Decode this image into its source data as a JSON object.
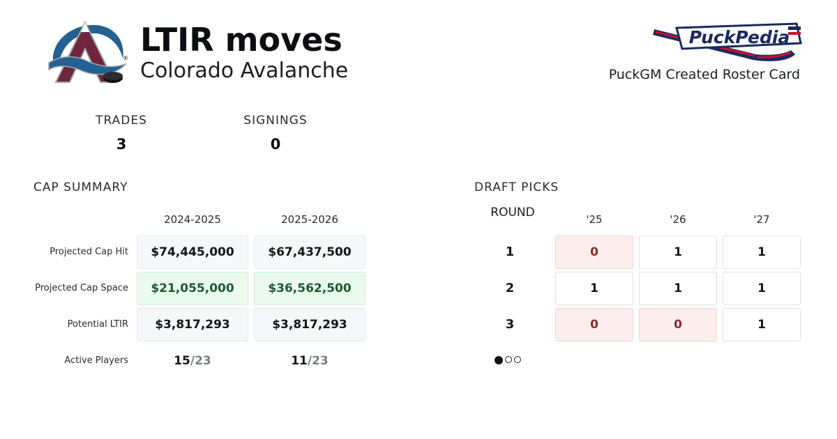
{
  "header": {
    "title": "LTIR moves",
    "subtitle": "Colorado Avalanche",
    "team_logo_icon": "colorado-avalanche-logo",
    "brand_logo_icon": "puckpedia-logo",
    "brand_logo_text": "PuckPedia",
    "brand_caption": "PuckGM Created Roster Card"
  },
  "stats": {
    "trades_label": "TRADES",
    "trades_value": "3",
    "signings_label": "SIGNINGS",
    "signings_value": "0"
  },
  "cap_summary": {
    "title": "CAP SUMMARY",
    "seasons": [
      "2024-2025",
      "2025-2026"
    ],
    "rows": [
      {
        "label": "Projected Cap Hit",
        "values": [
          "$74,445,000",
          "$67,437,500"
        ]
      },
      {
        "label": "Projected Cap Space",
        "values": [
          "$21,055,000",
          "$36,562,500"
        ]
      },
      {
        "label": "Potential LTIR",
        "values": [
          "$3,817,293",
          "$3,817,293"
        ]
      }
    ],
    "active_players": {
      "label": "Active Players",
      "values": [
        {
          "count": "15",
          "total": "/23"
        },
        {
          "count": "11",
          "total": "/23"
        }
      ]
    }
  },
  "draft_picks": {
    "title": "DRAFT PICKS",
    "round_label": "ROUND",
    "years": [
      "'25",
      "'26",
      "'27"
    ],
    "rounds": [
      {
        "round": "1",
        "picks": [
          "0",
          "1",
          "1"
        ]
      },
      {
        "round": "2",
        "picks": [
          "1",
          "1",
          "1"
        ]
      },
      {
        "round": "3",
        "picks": [
          "0",
          "0",
          "1"
        ]
      }
    ],
    "pagination": {
      "pages": 3,
      "active": 1
    }
  },
  "colors": {
    "avalanche_burgundy": "#6f263d",
    "avalanche_blue": "#236192",
    "avalanche_steel": "#a2aaad",
    "space_green_bg": "#eafaee",
    "space_green_text": "#1e5a2b",
    "pick_zero_bg": "#fdeeee",
    "pick_zero_text": "#8a2a2a",
    "puckpedia_navy": "#1a2a5e",
    "puckpedia_red": "#c8102e"
  }
}
